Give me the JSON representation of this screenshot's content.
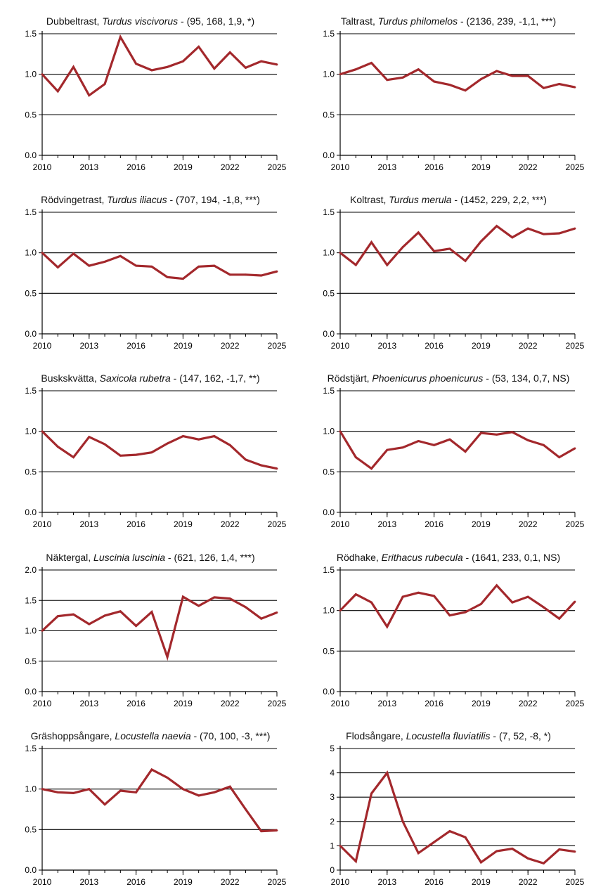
{
  "chart_data": [
    {
      "type": "line",
      "title": {
        "common": "Dubbeltrast",
        "latin": "Turdus viscivorus",
        "stats": " - (95, 168, 1,9, *)"
      },
      "xlabel": "",
      "ylabel": "",
      "x": [
        2010,
        2011,
        2012,
        2013,
        2014,
        2015,
        2016,
        2017,
        2018,
        2019,
        2020,
        2021,
        2022,
        2023,
        2024,
        2025
      ],
      "x_ticks": [
        "2010",
        "2013",
        "2016",
        "2019",
        "2022",
        "2025"
      ],
      "y_ticks": [
        "0.0",
        "0.5",
        "1.0",
        "1.5"
      ],
      "ylim": [
        0,
        1.5
      ],
      "grid": "horizontal",
      "line_color": "#a3282c",
      "series": [
        {
          "values": [
            1.0,
            0.79,
            1.09,
            0.74,
            0.88,
            1.46,
            1.13,
            1.05,
            1.09,
            1.16,
            1.34,
            1.07,
            1.27,
            1.08,
            1.16,
            1.12
          ]
        }
      ]
    },
    {
      "type": "line",
      "title": {
        "common": "Taltrast",
        "latin": "Turdus philomelos",
        "stats": " - (2136, 239, -1,1, ***)"
      },
      "xlabel": "",
      "ylabel": "",
      "x": [
        2010,
        2011,
        2012,
        2013,
        2014,
        2015,
        2016,
        2017,
        2018,
        2019,
        2020,
        2021,
        2022,
        2023,
        2024,
        2025
      ],
      "x_ticks": [
        "2010",
        "2013",
        "2016",
        "2019",
        "2022",
        "2025"
      ],
      "y_ticks": [
        "0.0",
        "0.5",
        "1.0",
        "1.5"
      ],
      "ylim": [
        0,
        1.5
      ],
      "grid": "horizontal",
      "line_color": "#a3282c",
      "series": [
        {
          "values": [
            1.0,
            1.06,
            1.14,
            0.93,
            0.96,
            1.06,
            0.91,
            0.87,
            0.8,
            0.94,
            1.04,
            0.98,
            0.98,
            0.83,
            0.88,
            0.84
          ]
        }
      ]
    },
    {
      "type": "line",
      "title": {
        "common": "Rödvingetrast",
        "latin": "Turdus iliacus",
        "stats": " - (707, 194, -1,8, ***)"
      },
      "xlabel": "",
      "ylabel": "",
      "x": [
        2010,
        2011,
        2012,
        2013,
        2014,
        2015,
        2016,
        2017,
        2018,
        2019,
        2020,
        2021,
        2022,
        2023,
        2024,
        2025
      ],
      "x_ticks": [
        "2010",
        "2013",
        "2016",
        "2019",
        "2022",
        "2025"
      ],
      "y_ticks": [
        "0.0",
        "0.5",
        "1.0",
        "1.5"
      ],
      "ylim": [
        0,
        1.5
      ],
      "grid": "horizontal",
      "line_color": "#a3282c",
      "series": [
        {
          "values": [
            1.0,
            0.82,
            0.99,
            0.84,
            0.89,
            0.96,
            0.84,
            0.83,
            0.7,
            0.68,
            0.83,
            0.84,
            0.73,
            0.73,
            0.72,
            0.77
          ]
        }
      ]
    },
    {
      "type": "line",
      "title": {
        "common": "Koltrast",
        "latin": "Turdus merula",
        "stats": " - (1452, 229, 2,2, ***)"
      },
      "xlabel": "",
      "ylabel": "",
      "x": [
        2010,
        2011,
        2012,
        2013,
        2014,
        2015,
        2016,
        2017,
        2018,
        2019,
        2020,
        2021,
        2022,
        2023,
        2024,
        2025
      ],
      "x_ticks": [
        "2010",
        "2013",
        "2016",
        "2019",
        "2022",
        "2025"
      ],
      "y_ticks": [
        "0.0",
        "0.5",
        "1.0",
        "1.5"
      ],
      "ylim": [
        0,
        1.5
      ],
      "grid": "horizontal",
      "line_color": "#a3282c",
      "series": [
        {
          "values": [
            1.0,
            0.85,
            1.13,
            0.85,
            1.07,
            1.25,
            1.02,
            1.05,
            0.9,
            1.14,
            1.33,
            1.19,
            1.3,
            1.23,
            1.24,
            1.3
          ]
        }
      ]
    },
    {
      "type": "line",
      "title": {
        "common": "Buskskvätta",
        "latin": "Saxicola rubetra",
        "stats": " - (147, 162, -1,7, **)"
      },
      "xlabel": "",
      "ylabel": "",
      "x": [
        2010,
        2011,
        2012,
        2013,
        2014,
        2015,
        2016,
        2017,
        2018,
        2019,
        2020,
        2021,
        2022,
        2023,
        2024,
        2025
      ],
      "x_ticks": [
        "2010",
        "2013",
        "2016",
        "2019",
        "2022",
        "2025"
      ],
      "y_ticks": [
        "0.0",
        "0.5",
        "1.0",
        "1.5"
      ],
      "ylim": [
        0,
        1.5
      ],
      "grid": "horizontal",
      "line_color": "#a3282c",
      "series": [
        {
          "values": [
            1.0,
            0.81,
            0.68,
            0.93,
            0.84,
            0.7,
            0.71,
            0.74,
            0.85,
            0.94,
            0.9,
            0.94,
            0.83,
            0.65,
            0.58,
            0.54
          ]
        }
      ]
    },
    {
      "type": "line",
      "title": {
        "common": "Rödstjärt",
        "latin": "Phoenicurus phoenicurus",
        "stats": " - (53, 134, 0,7, NS)"
      },
      "xlabel": "",
      "ylabel": "",
      "x": [
        2010,
        2011,
        2012,
        2013,
        2014,
        2015,
        2016,
        2017,
        2018,
        2019,
        2020,
        2021,
        2022,
        2023,
        2024,
        2025
      ],
      "x_ticks": [
        "2010",
        "2013",
        "2016",
        "2019",
        "2022",
        "2025"
      ],
      "y_ticks": [
        "0.0",
        "0.5",
        "1.0",
        "1.5"
      ],
      "ylim": [
        0,
        1.5
      ],
      "grid": "horizontal",
      "line_color": "#a3282c",
      "series": [
        {
          "values": [
            1.0,
            0.68,
            0.54,
            0.77,
            0.8,
            0.88,
            0.83,
            0.9,
            0.75,
            0.98,
            0.96,
            0.99,
            0.89,
            0.83,
            0.68,
            0.79
          ]
        }
      ]
    },
    {
      "type": "line",
      "title": {
        "common": "Näktergal",
        "latin": "Luscinia luscinia",
        "stats": " - (621, 126, 1,4, ***)"
      },
      "xlabel": "",
      "ylabel": "",
      "x": [
        2010,
        2011,
        2012,
        2013,
        2014,
        2015,
        2016,
        2017,
        2018,
        2019,
        2020,
        2021,
        2022,
        2023,
        2024,
        2025
      ],
      "x_ticks": [
        "2010",
        "2013",
        "2016",
        "2019",
        "2022",
        "2025"
      ],
      "y_ticks": [
        "0.0",
        "0.5",
        "1.0",
        "1.5",
        "2.0"
      ],
      "ylim": [
        0,
        2.0
      ],
      "grid": "horizontal",
      "line_color": "#a3282c",
      "series": [
        {
          "values": [
            1.0,
            1.24,
            1.27,
            1.11,
            1.25,
            1.32,
            1.08,
            1.31,
            0.57,
            1.56,
            1.41,
            1.55,
            1.53,
            1.39,
            1.2,
            1.3
          ]
        }
      ]
    },
    {
      "type": "line",
      "title": {
        "common": "Rödhake",
        "latin": "Erithacus rubecula",
        "stats": " - (1641, 233, 0,1, NS)"
      },
      "xlabel": "",
      "ylabel": "",
      "x": [
        2010,
        2011,
        2012,
        2013,
        2014,
        2015,
        2016,
        2017,
        2018,
        2019,
        2020,
        2021,
        2022,
        2023,
        2024,
        2025
      ],
      "x_ticks": [
        "2010",
        "2013",
        "2016",
        "2019",
        "2022",
        "2025"
      ],
      "y_ticks": [
        "0.0",
        "0.5",
        "1.0",
        "1.5"
      ],
      "ylim": [
        0,
        1.5
      ],
      "grid": "horizontal",
      "line_color": "#a3282c",
      "series": [
        {
          "values": [
            1.0,
            1.2,
            1.1,
            0.8,
            1.17,
            1.22,
            1.18,
            0.94,
            0.98,
            1.08,
            1.31,
            1.1,
            1.17,
            1.04,
            0.9,
            1.11
          ]
        }
      ]
    },
    {
      "type": "line",
      "title": {
        "common": "Gräshoppsångare",
        "latin": "Locustella naevia",
        "stats": " - (70, 100, -3, ***)"
      },
      "xlabel": "",
      "ylabel": "",
      "x": [
        2010,
        2011,
        2012,
        2013,
        2014,
        2015,
        2016,
        2017,
        2018,
        2019,
        2020,
        2021,
        2022,
        2023,
        2024,
        2025
      ],
      "x_ticks": [
        "2010",
        "2013",
        "2016",
        "2019",
        "2022",
        "2025"
      ],
      "y_ticks": [
        "0.0",
        "0.5",
        "1.0",
        "1.5"
      ],
      "ylim": [
        0,
        1.5
      ],
      "grid": "horizontal",
      "line_color": "#a3282c",
      "series": [
        {
          "values": [
            1.0,
            0.96,
            0.95,
            1.0,
            0.81,
            0.98,
            0.96,
            1.24,
            1.14,
            1.0,
            0.92,
            0.96,
            1.03,
            0.75,
            0.48,
            0.49
          ]
        }
      ]
    },
    {
      "type": "line",
      "title": {
        "common": "Flodsångare",
        "latin": "Locustella fluviatilis",
        "stats": " - (7, 52, -8, *)"
      },
      "xlabel": "",
      "ylabel": "",
      "x": [
        2010,
        2011,
        2012,
        2013,
        2014,
        2015,
        2016,
        2017,
        2018,
        2019,
        2020,
        2021,
        2022,
        2023,
        2024,
        2025
      ],
      "x_ticks": [
        "2010",
        "2013",
        "2016",
        "2019",
        "2022",
        "2025"
      ],
      "y_ticks": [
        "0",
        "1",
        "2",
        "3",
        "4",
        "5"
      ],
      "ylim": [
        0,
        5
      ],
      "grid": "horizontal",
      "line_color": "#a3282c",
      "series": [
        {
          "values": [
            1.0,
            0.36,
            3.15,
            4.0,
            2.0,
            0.7,
            1.15,
            1.6,
            1.35,
            0.32,
            0.78,
            0.88,
            0.48,
            0.28,
            0.85,
            0.76
          ]
        }
      ]
    }
  ]
}
